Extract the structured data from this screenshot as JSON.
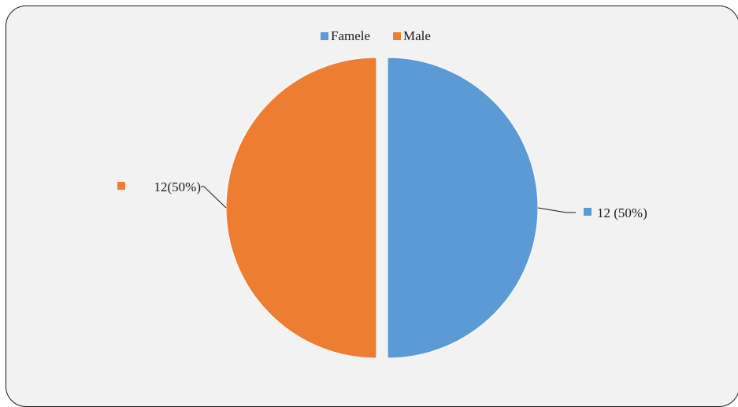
{
  "chart_data": {
    "type": "pie",
    "title": "",
    "legend_position": "top",
    "slices": [
      {
        "name": "Famele",
        "value": 12,
        "percent": 50,
        "label": "12 (50%)",
        "color": "#5b9bd5"
      },
      {
        "name": "Male",
        "value": 12,
        "percent": 50,
        "label": "12(50%)",
        "color": "#ed7d31"
      }
    ]
  }
}
